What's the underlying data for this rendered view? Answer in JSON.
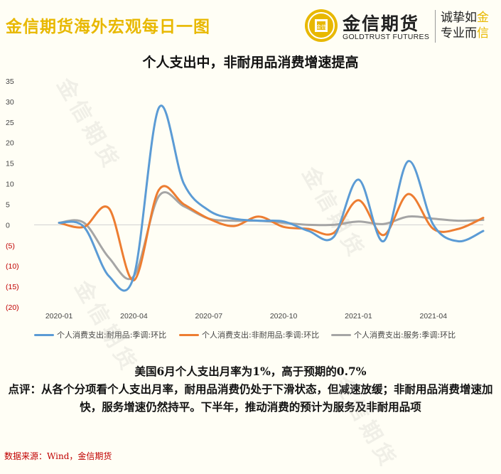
{
  "header": {
    "brand_title": "金信期货海外宏观每日一图",
    "logo_cn": "金信期货",
    "logo_en": "GOLDTRUST FUTURES",
    "logo_coin_text": "金信",
    "slogan_line1_a": "诚挚如",
    "slogan_line1_b": "金",
    "slogan_line2_a": "专业而",
    "slogan_line2_b": "信",
    "watermark": "金信期货"
  },
  "colors": {
    "brand_gold": "#e8b800",
    "series1": "#5b9bd5",
    "series2": "#ed7d31",
    "series3": "#a5a5a5",
    "negative_tick": "#c00000"
  },
  "chart_data": {
    "type": "line",
    "title": "个人支出中，非耐用品消费增速提高",
    "xlabel": "",
    "ylabel": "",
    "ylim": [
      -20,
      35
    ],
    "xlim": [
      "2019-12",
      "2021-06"
    ],
    "x": [
      "2020-01",
      "2020-02",
      "2020-03",
      "2020-04",
      "2020-05",
      "2020-06",
      "2020-07",
      "2020-08",
      "2020-09",
      "2020-10",
      "2020-11",
      "2020-12",
      "2021-01",
      "2021-02",
      "2021-03",
      "2021-04",
      "2021-05",
      "2021-06"
    ],
    "xticks": [
      "2020-01",
      "2020-04",
      "2020-07",
      "2020-10",
      "2021-01",
      "2021-04"
    ],
    "yticks": [
      {
        "value": 35,
        "label": "35"
      },
      {
        "value": 30,
        "label": "30"
      },
      {
        "value": 25,
        "label": "25"
      },
      {
        "value": 20,
        "label": "20"
      },
      {
        "value": 15,
        "label": "15"
      },
      {
        "value": 10,
        "label": "10"
      },
      {
        "value": 5,
        "label": "5"
      },
      {
        "value": 0,
        "label": "0"
      },
      {
        "value": -5,
        "label": "(5)"
      },
      {
        "value": -10,
        "label": "(10)"
      },
      {
        "value": -15,
        "label": "(15)"
      },
      {
        "value": -20,
        "label": "(20)"
      }
    ],
    "series": [
      {
        "name": "个人消费支出:耐用品:季调:环比",
        "values": [
          0.5,
          -0.5,
          -12.5,
          -12.5,
          28.5,
          10,
          3.5,
          1.5,
          1,
          0.8,
          -1.5,
          -3.0,
          11.0,
          -4.0,
          15.5,
          0,
          -4.0,
          -1.5
        ]
      },
      {
        "name": "个人消费支出:非耐用品:季调:环比",
        "values": [
          0.5,
          -0.5,
          4.0,
          -13.5,
          8.5,
          5.0,
          1.5,
          -0.3,
          2.0,
          -0.5,
          -1.0,
          -2.0,
          6.0,
          -2.5,
          7.5,
          -1.0,
          -1.0,
          1.7
        ]
      },
      {
        "name": "个人消费支出:服务:季调:环比",
        "values": [
          0.5,
          0.5,
          -8.0,
          -12.5,
          7.0,
          4.5,
          1.5,
          1.0,
          1.0,
          0.5,
          0,
          0,
          0.8,
          0.2,
          2.0,
          1.5,
          1.0,
          1.2
        ]
      }
    ],
    "legend_position": "bottom",
    "grid": false
  },
  "commentary": {
    "line1": "美国6月个人支出月率为1%，高于预期的0.7%",
    "line2": "点评：从各个分项看个人支出月率，耐用品消费仍处于下滑状态，但减速放缓；非耐用品消费增速加快，服务增速仍然持平。下半年，推动消费的预计为服务及非耐用品项"
  },
  "source": "数据来源：Wind，金信期货"
}
